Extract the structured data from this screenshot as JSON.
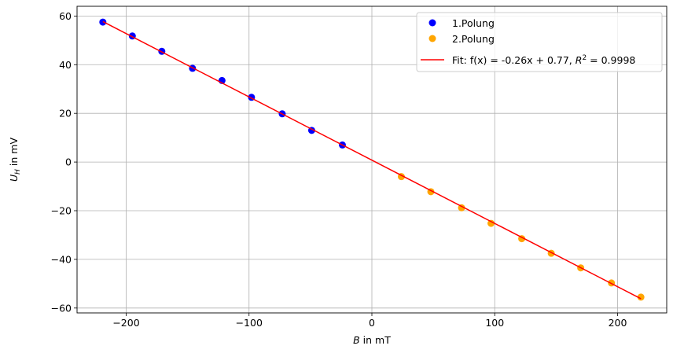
{
  "chart_data": {
    "type": "scatter",
    "title": "",
    "xlabel": "B",
    "xlabel_unit": " in mT",
    "ylabel": "U",
    "ylabel_sub": "H",
    "ylabel_unit": " in mV",
    "xlim": [
      -240,
      240
    ],
    "ylim": [
      -62,
      64
    ],
    "xticks": [
      -200,
      -100,
      0,
      100,
      200
    ],
    "yticks": [
      -60,
      -40,
      -20,
      0,
      20,
      40,
      60
    ],
    "grid": true,
    "legend_position": "top-right",
    "series": [
      {
        "name": "1.Polung",
        "kind": "points",
        "color": "#0000ff",
        "x": [
          -219,
          -195,
          -171,
          -146,
          -122,
          -98,
          -73,
          -49,
          -24
        ],
        "y": [
          57.5,
          51.8,
          45.5,
          38.5,
          33.5,
          26.6,
          19.8,
          13.0,
          7.0
        ]
      },
      {
        "name": "2.Polung",
        "kind": "points",
        "color": "#ffa500",
        "x": [
          24,
          48,
          73,
          97,
          122,
          146,
          170,
          195,
          219
        ],
        "y": [
          -6.0,
          -12.2,
          -18.8,
          -25.2,
          -31.5,
          -37.5,
          -43.5,
          -49.7,
          -55.5
        ]
      },
      {
        "name": "Fit: f(x) = -0.26x + 0.77, ",
        "name_r2": "R",
        "name_r2_sup": "2",
        "name_r2_value": " = 0.9998",
        "kind": "line",
        "color": "#ff0000",
        "x": [
          -219,
          219
        ],
        "y": [
          57.71,
          -56.17
        ]
      }
    ]
  }
}
